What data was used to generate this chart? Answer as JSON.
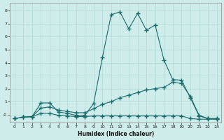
{
  "xlabel": "Humidex (Indice chaleur)",
  "bg_color": "#cdecea",
  "grid_color": "#b2d8d5",
  "line_color": "#1a6b6b",
  "xlim": [
    -0.5,
    23.5
  ],
  "ylim": [
    -0.6,
    8.6
  ],
  "xticks": [
    0,
    1,
    2,
    3,
    4,
    5,
    6,
    7,
    8,
    9,
    10,
    11,
    12,
    13,
    14,
    15,
    16,
    17,
    18,
    19,
    20,
    21,
    22,
    23
  ],
  "yticks": [
    0,
    1,
    2,
    3,
    4,
    5,
    6,
    7,
    8
  ],
  "ytick_labels": [
    "-0",
    "1",
    "2",
    "3",
    "4",
    "5",
    "6",
    "7",
    "8"
  ],
  "series1_x": [
    0,
    1,
    2,
    3,
    4,
    5,
    6,
    7,
    8,
    9,
    10,
    11,
    12,
    13,
    14,
    15,
    16,
    17,
    18,
    19,
    20,
    21,
    22,
    23
  ],
  "series1_y": [
    -0.3,
    -0.2,
    -0.15,
    0.9,
    0.9,
    0.2,
    0.1,
    -0.05,
    -0.05,
    0.85,
    4.4,
    7.7,
    7.9,
    6.6,
    7.8,
    6.5,
    6.9,
    4.2,
    2.7,
    2.65,
    1.3,
    -0.1,
    -0.3,
    -0.3
  ],
  "series2_x": [
    0,
    1,
    2,
    3,
    4,
    5,
    6,
    7,
    8,
    9,
    10,
    11,
    12,
    13,
    14,
    15,
    16,
    17,
    18,
    19,
    20,
    21,
    22,
    23
  ],
  "series2_y": [
    -0.3,
    -0.2,
    -0.15,
    0.5,
    0.6,
    0.35,
    0.25,
    0.15,
    0.15,
    0.45,
    0.8,
    1.0,
    1.3,
    1.5,
    1.7,
    1.9,
    2.0,
    2.1,
    2.5,
    2.4,
    1.4,
    -0.05,
    -0.3,
    -0.35
  ],
  "series3_x": [
    0,
    1,
    2,
    3,
    4,
    5,
    6,
    7,
    8,
    9,
    10,
    11,
    12,
    13,
    14,
    15,
    16,
    17,
    18,
    19,
    20,
    21,
    22,
    23
  ],
  "series3_y": [
    -0.3,
    -0.2,
    -0.15,
    0.1,
    0.1,
    -0.05,
    -0.1,
    -0.15,
    -0.15,
    -0.1,
    -0.1,
    -0.1,
    -0.1,
    -0.1,
    -0.1,
    -0.1,
    -0.1,
    -0.1,
    -0.1,
    -0.1,
    -0.3,
    -0.35,
    -0.35,
    -0.35
  ]
}
